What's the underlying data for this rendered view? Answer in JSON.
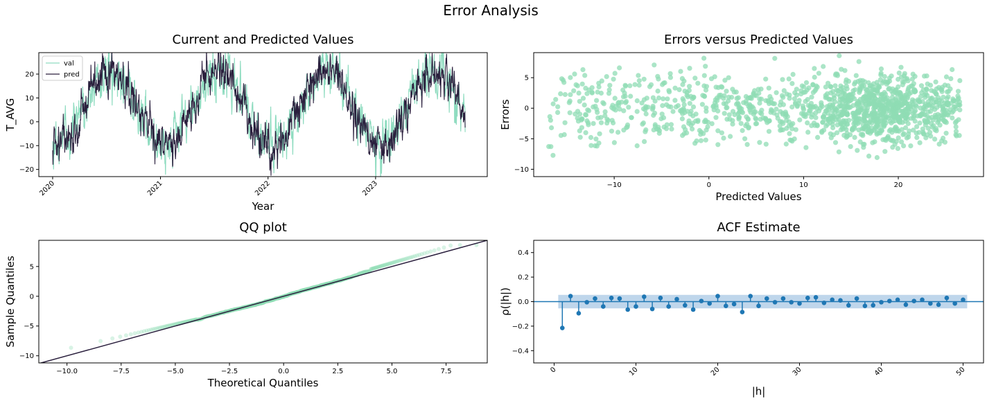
{
  "figure": {
    "title": "Error Analysis"
  },
  "colors": {
    "val": "#8fdcc0",
    "pred": "#2a1f3d",
    "scatter": "#8fdcb4",
    "acf": "#1f77b4",
    "band": "#aac8e4"
  },
  "chart_data": [
    {
      "id": "current-predicted",
      "type": "line",
      "title": "Current and Predicted Values",
      "xlabel": "Year",
      "ylabel": "T_AVG",
      "x_tick_labels": [
        "2020",
        "2021",
        "2022",
        "2023"
      ],
      "x_tick_years": [
        2020,
        2021,
        2022,
        2023
      ],
      "xlim": [
        "2019-11-15",
        "2024-01-15"
      ],
      "y_ticks": [
        -20,
        -10,
        0,
        10,
        20
      ],
      "ylim": [
        -23,
        29
      ],
      "legend": {
        "position": "upper-left",
        "entries": [
          "val",
          "pred"
        ]
      },
      "series": [
        {
          "name": "val",
          "model": {
            "start": "2020-01-01",
            "end": "2023-11-01",
            "mean": 6,
            "amplitude": 15,
            "peak_day_of_year": 200,
            "noise": 5.2
          }
        },
        {
          "name": "pred",
          "model": {
            "start": "2020-01-01",
            "end": "2023-11-01",
            "mean": 6,
            "amplitude": 15,
            "peak_day_of_year": 200,
            "noise": 4.3
          }
        }
      ]
    },
    {
      "id": "errors-vs-predicted",
      "type": "scatter",
      "title": "Errors versus Predicted Values",
      "xlabel": "Predicted Values",
      "ylabel": "Errors",
      "x_ticks": [
        -10,
        0,
        10,
        20
      ],
      "y_ticks": [
        -10,
        -5,
        0,
        5
      ],
      "xlim": [
        -18.5,
        29
      ],
      "ylim": [
        -11.2,
        9.1
      ],
      "points_model": {
        "count": 1400,
        "x_range": [
          -17,
          26.5
        ],
        "x_dense_center": 18,
        "error_sd": 2.9,
        "error_range": [
          -10.3,
          8.6
        ]
      }
    },
    {
      "id": "qq-plot",
      "type": "scatter",
      "title": "QQ plot",
      "xlabel": "Theoretical Quantiles",
      "ylabel": "Sample Quantiles",
      "x_ticks": [
        -10.0,
        -7.5,
        -5.0,
        -2.5,
        0.0,
        2.5,
        5.0,
        7.5
      ],
      "x_tick_labels": [
        "−10.0",
        "−7.5",
        "−5.0",
        "−2.5",
        "0.0",
        "2.5",
        "5.0",
        "7.5"
      ],
      "y_ticks": [
        -10,
        -5,
        0,
        5
      ],
      "xlim": [
        -11.3,
        9.4
      ],
      "ylim": [
        -11.2,
        9.4
      ],
      "reference_line": {
        "slope": 1,
        "intercept": 0
      },
      "points_model": {
        "count": 1400,
        "sd": 2.9,
        "range": [
          -8.4,
          8.6
        ]
      }
    },
    {
      "id": "acf-estimate",
      "type": "bar",
      "title": "ACF Estimate",
      "xlabel": "|h|",
      "ylabel": "ρ(|h|)",
      "x_ticks": [
        0,
        10,
        20,
        30,
        40,
        50
      ],
      "y_ticks": [
        -0.4,
        -0.2,
        0.0,
        0.2,
        0.4
      ],
      "y_tick_labels": [
        "−0.4",
        "−0.2",
        "0.0",
        "0.2",
        "0.4"
      ],
      "xlim": [
        -2.5,
        52.5
      ],
      "ylim": [
        -0.5,
        0.5
      ],
      "confidence_band": [
        -0.055,
        0.055
      ],
      "lags": [
        1,
        2,
        3,
        4,
        5,
        6,
        7,
        8,
        9,
        10,
        11,
        12,
        13,
        14,
        15,
        16,
        17,
        18,
        19,
        20,
        21,
        22,
        23,
        24,
        25,
        26,
        27,
        28,
        29,
        30,
        31,
        32,
        33,
        34,
        35,
        36,
        37,
        38,
        39,
        40,
        41,
        42,
        43,
        44,
        45,
        46,
        47,
        48,
        49,
        50
      ],
      "values": [
        -0.215,
        0.045,
        -0.095,
        -0.005,
        0.025,
        -0.04,
        0.03,
        0.025,
        -0.065,
        -0.04,
        0.04,
        -0.06,
        0.03,
        -0.04,
        0.02,
        -0.03,
        -0.065,
        0.005,
        -0.015,
        0.045,
        -0.035,
        -0.02,
        -0.085,
        0.045,
        -0.035,
        0.025,
        -0.005,
        0.025,
        -0.005,
        -0.015,
        0.03,
        0.035,
        -0.01,
        0.015,
        0.01,
        -0.03,
        0.025,
        -0.035,
        -0.03,
        -0.005,
        0.005,
        0.015,
        -0.025,
        0.005,
        0.015,
        -0.015,
        -0.025,
        0.03,
        -0.015,
        0.015
      ]
    }
  ]
}
